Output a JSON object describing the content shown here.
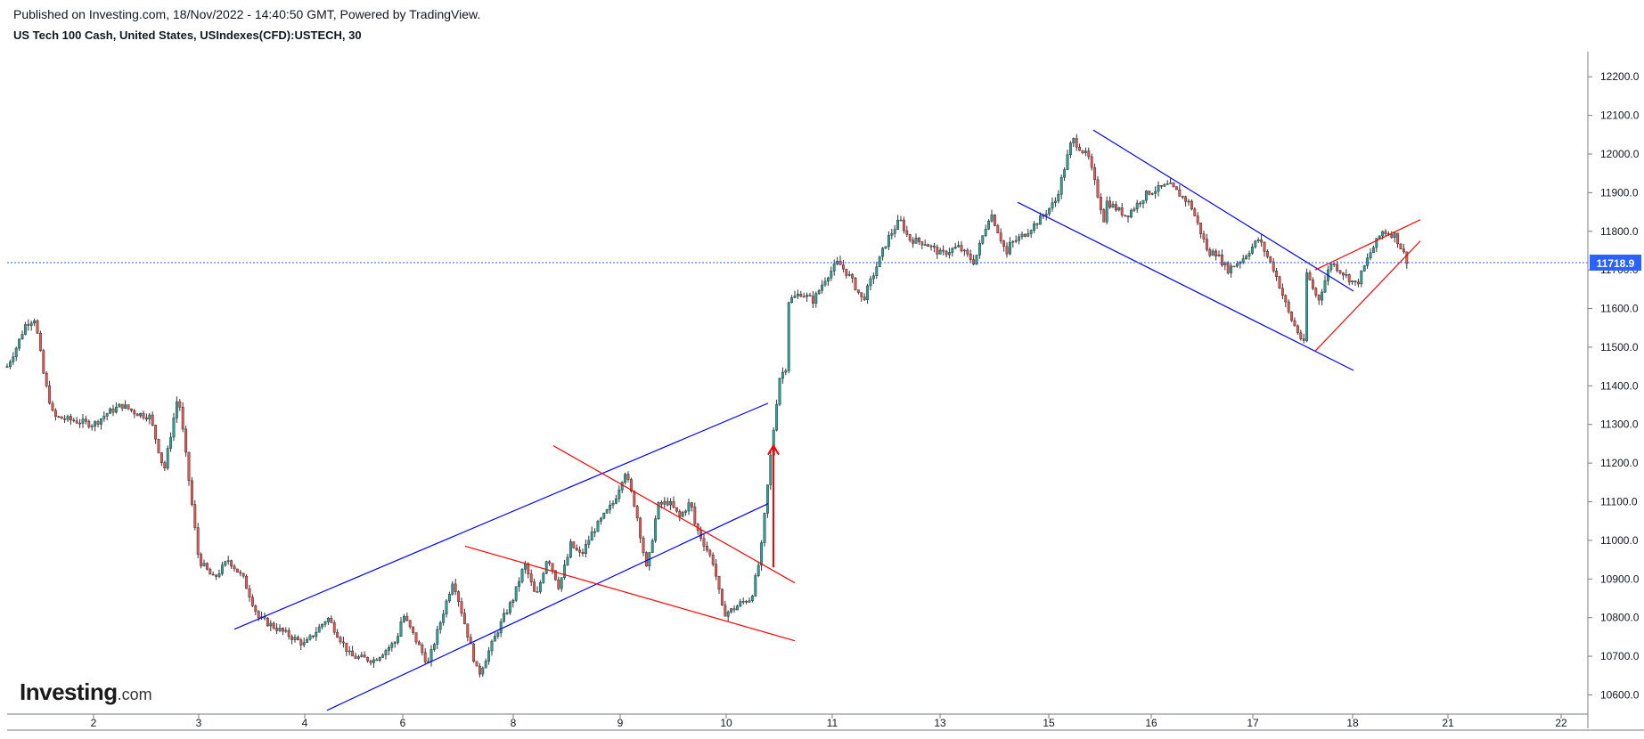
{
  "header": {
    "published": "Published on Investing.com, 18/Nov/2022 - 14:40:50 GMT, Powered by TradingView.",
    "symbol": "US Tech 100 Cash, United States, USIndexes(CFD):USTECH, 30"
  },
  "logo": {
    "main": "Investing",
    "suffix": ".com"
  },
  "colors": {
    "up": "#26a69a",
    "down": "#ef5350",
    "candle_outline": "#333333",
    "blue_line": "#0000ff",
    "red_line": "#ff0000",
    "price_line": "#2962ff",
    "price_label_bg": "#2962ff",
    "axis": "#787b86"
  },
  "chart_data": {
    "type": "candlestick",
    "timeframe_minutes": 30,
    "y_axis_ticks": [
      "12200.0",
      "12100.0",
      "12000.0",
      "11900.0",
      "11800.0",
      "11700.0",
      "11600.0",
      "11500.0",
      "11400.0",
      "11300.0",
      "11200.0",
      "11100.0",
      "11000.0",
      "10900.0",
      "10800.0",
      "10700.0",
      "10600.0"
    ],
    "y_range": [
      10555,
      12265
    ],
    "x_axis_labels": [
      "2",
      "3",
      "4",
      "6",
      "8",
      "9",
      "10",
      "11",
      "13",
      "15",
      "16",
      "17",
      "18",
      "21",
      "22"
    ],
    "current_price": "11718.9",
    "price_path": [
      [
        "Nov 1",
        11450
      ],
      [
        "Nov 1",
        11500
      ],
      [
        "Nov 1",
        11560
      ],
      [
        "Nov 1",
        11575
      ],
      [
        "Nov 1",
        11420
      ],
      [
        "Nov 1",
        11320
      ],
      [
        "Nov 2",
        11300
      ],
      [
        "Nov 2",
        11330
      ],
      [
        "Nov 2",
        11350
      ],
      [
        "Nov 2",
        11330
      ],
      [
        "Nov 2",
        11320
      ],
      [
        "Nov 2",
        11180
      ],
      [
        "Nov 2",
        11380
      ],
      [
        "Nov 3",
        10950
      ],
      [
        "Nov 3",
        10900
      ],
      [
        "Nov 3",
        10950
      ],
      [
        "Nov 3",
        10900
      ],
      [
        "Nov 3",
        10800
      ],
      [
        "Nov 4",
        10730
      ],
      [
        "Nov 4",
        10800
      ],
      [
        "Nov 4",
        10700
      ],
      [
        "Nov 4",
        10690
      ],
      [
        "Nov 4",
        10740
      ],
      [
        "Nov 7",
        10810
      ],
      [
        "Nov 7",
        10680
      ],
      [
        "Nov 7",
        10900
      ],
      [
        "Nov 7",
        10650
      ],
      [
        "Nov 7",
        10800
      ],
      [
        "Nov 8",
        10850
      ],
      [
        "Nov 8",
        10940
      ],
      [
        "Nov 8",
        10850
      ],
      [
        "Nov 8",
        10960
      ],
      [
        "Nov 8",
        10880
      ],
      [
        "Nov 8",
        10980
      ],
      [
        "Nov 9",
        10990
      ],
      [
        "Nov 9",
        10960
      ],
      [
        "Nov 9",
        11020
      ],
      [
        "Nov 9",
        11060
      ],
      [
        "Nov 9",
        11100
      ],
      [
        "Nov 9",
        11180
      ],
      [
        "Nov 9",
        11080
      ],
      [
        "Nov 9",
        10920
      ],
      [
        "Nov 9",
        11090
      ],
      [
        "Nov 9",
        11100
      ],
      [
        "Nov 9",
        11060
      ],
      [
        "Nov 9",
        11100
      ],
      [
        "Nov 10",
        11040
      ],
      [
        "Nov 10",
        10990
      ],
      [
        "Nov 10",
        10940
      ],
      [
        "Nov 10",
        10810
      ],
      [
        "Nov 10",
        10820
      ],
      [
        "Nov 10",
        10840
      ],
      [
        "Nov 10",
        10850
      ],
      [
        "Nov 10",
        10960
      ],
      [
        "Nov 10",
        11200
      ],
      [
        "Nov 10",
        11420
      ],
      [
        "Nov 10",
        11460
      ],
      [
        "Nov 11",
        11620
      ],
      [
        "Nov 11",
        11640
      ],
      [
        "Nov 11",
        11620
      ],
      [
        "Nov 11",
        11680
      ],
      [
        "Nov 11",
        11720
      ],
      [
        "Nov 11",
        11680
      ],
      [
        "Nov 11",
        11620
      ],
      [
        "Nov 11",
        11700
      ],
      [
        "Nov 11",
        11780
      ],
      [
        "Nov 11",
        11830
      ],
      [
        "Nov 14",
        11780
      ],
      [
        "Nov 14",
        11770
      ],
      [
        "Nov 14",
        11740
      ],
      [
        "Nov 14",
        11760
      ],
      [
        "Nov 14",
        11720
      ],
      [
        "Nov 14",
        11850
      ],
      [
        "Nov 14",
        11740
      ],
      [
        "Nov 15",
        11760
      ],
      [
        "Nov 15",
        11790
      ],
      [
        "Nov 15",
        11830
      ],
      [
        "Nov 15",
        11880
      ],
      [
        "Nov 15",
        12040
      ],
      [
        "Nov 15",
        11990
      ],
      [
        "Nov 15",
        11820
      ],
      [
        "Nov 16",
        11880
      ],
      [
        "Nov 16",
        11840
      ],
      [
        "Nov 16",
        11900
      ],
      [
        "Nov 16",
        11920
      ],
      [
        "Nov 16",
        11870
      ],
      [
        "Nov 16",
        11720
      ],
      [
        "Nov 17",
        11760
      ],
      [
        "Nov 17",
        11700
      ],
      [
        "Nov 17",
        11730
      ],
      [
        "Nov 17",
        11780
      ],
      [
        "Nov 17",
        11700
      ],
      [
        "Nov 17",
        11580
      ],
      [
        "Nov 17",
        11500
      ],
      [
        "Nov 18",
        11700
      ],
      [
        "Nov 18",
        11620
      ],
      [
        "Nov 18",
        11720
      ],
      [
        "Nov 18",
        11690
      ],
      [
        "Nov 18",
        11660
      ],
      [
        "Nov 18",
        11740
      ],
      [
        "Nov 18",
        11800
      ],
      [
        "Nov 18",
        11790
      ],
      [
        "Nov 18",
        11718.9
      ]
    ],
    "trendlines": [
      {
        "color": "blue",
        "from": [
          "Nov 3",
          10770
        ],
        "to": [
          "Nov 10",
          11355
        ]
      },
      {
        "color": "blue",
        "from": [
          "Nov 4",
          10560
        ],
        "to": [
          "Nov 10",
          11095
        ]
      },
      {
        "color": "red",
        "from": [
          "Nov 8",
          11245
        ],
        "to": [
          "Nov 10",
          10890
        ]
      },
      {
        "color": "red",
        "from": [
          "Nov 7",
          10985
        ],
        "to": [
          "Nov 10",
          10740
        ]
      },
      {
        "color": "blue",
        "from": [
          "Nov 15",
          12062
        ],
        "to": [
          "Nov 18",
          11645
        ]
      },
      {
        "color": "blue",
        "from": [
          "Nov 14",
          11875
        ],
        "to": [
          "Nov 18",
          11440
        ]
      },
      {
        "color": "red",
        "from": [
          "Nov 17",
          11490
        ],
        "to": [
          "Nov 18",
          11775
        ]
      },
      {
        "color": "red",
        "from": [
          "Nov 17",
          11700
        ],
        "to": [
          "Nov 18",
          11830
        ]
      }
    ],
    "arrow": {
      "color": "red",
      "from": [
        "Nov 10",
        10930
      ],
      "to": [
        "Nov 10",
        11245
      ]
    }
  }
}
